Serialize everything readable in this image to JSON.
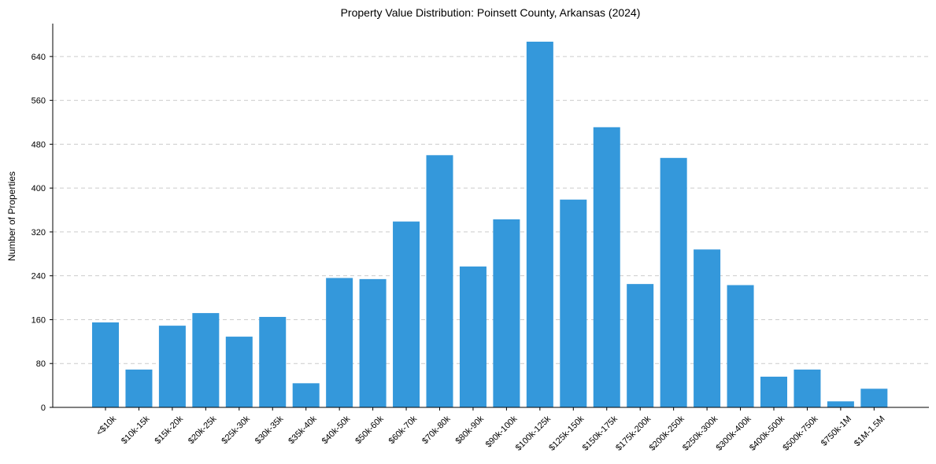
{
  "chart_data": {
    "type": "bar",
    "title": "Property Value Distribution: Poinsett County, Arkansas (2024)",
    "xlabel": "",
    "ylabel": "Number of Properties",
    "ylim": [
      0,
      700
    ],
    "yticks": [
      0,
      80,
      160,
      240,
      320,
      400,
      480,
      560,
      640
    ],
    "grid": true,
    "bar_color": "#3498db",
    "categories": [
      "<$10k",
      "$10k-15k",
      "$15k-20k",
      "$20k-25k",
      "$25k-30k",
      "$30k-35k",
      "$35k-40k",
      "$40k-50k",
      "$50k-60k",
      "$60k-70k",
      "$70k-80k",
      "$80k-90k",
      "$90k-100k",
      "$100k-125k",
      "$125k-150k",
      "$150k-175k",
      "$175k-200k",
      "$200k-250k",
      "$250k-300k",
      "$300k-400k",
      "$400k-500k",
      "$500k-750k",
      "$750k-1M",
      "$1M-1.5M"
    ],
    "values": [
      155,
      69,
      149,
      172,
      129,
      165,
      44,
      236,
      234,
      339,
      460,
      257,
      343,
      667,
      379,
      511,
      225,
      455,
      288,
      223,
      56,
      69,
      11,
      34
    ]
  }
}
